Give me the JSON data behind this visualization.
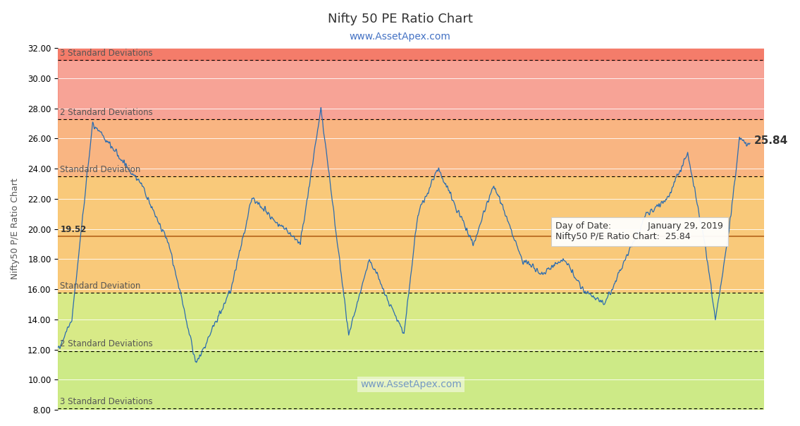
{
  "title": "Nifty 50 PE Ratio Chart",
  "subtitle": "www.AssetApex.com",
  "subtitle_url": "www.AssetApex.com",
  "ylabel": "Nifty50 P/E Ratio Chart",
  "watermark": "www.AssetApex.com",
  "ylim": [
    8.0,
    32.0
  ],
  "yticks": [
    8.0,
    10.0,
    12.0,
    14.0,
    16.0,
    18.0,
    20.0,
    22.0,
    24.0,
    26.0,
    28.0,
    30.0,
    32.0
  ],
  "mean": 19.52,
  "band_lines": {
    "3sd_upper": 31.2,
    "2sd_upper": 27.3,
    "1sd_upper": 23.5,
    "1sd_lower": 15.75,
    "2sd_lower": 11.9,
    "3sd_lower": 8.1
  },
  "band_colors": {
    "above_3sd": "#f47c6a",
    "above_2sd": "#f9a86c",
    "above_1sd": "#f9c46c",
    "mean_band": "#f9c46c",
    "below_1sd": "#f9c46c",
    "below_2sd": "#d9e88a",
    "below_3sd": "#c8e87a"
  },
  "band_labels": {
    "3sd_upper": "3 Standard Deviations",
    "2sd_upper": "2 Standard Deviations",
    "1sd_upper": "Standard Deviation",
    "1sd_lower": "Standard Deviation",
    "2sd_lower": "2 Standard Deviations",
    "3sd_lower": "3 Standard Deviations"
  },
  "tooltip": {
    "date": "January 29, 2019",
    "value": 25.84,
    "label": "Nifty50 P/E Ratio Chart"
  },
  "line_color": "#2b6cb0",
  "mean_line_color": "#b5651d",
  "title_color": "#333333",
  "subtitle_color": "#4472c4",
  "background_color": "#ffffff"
}
